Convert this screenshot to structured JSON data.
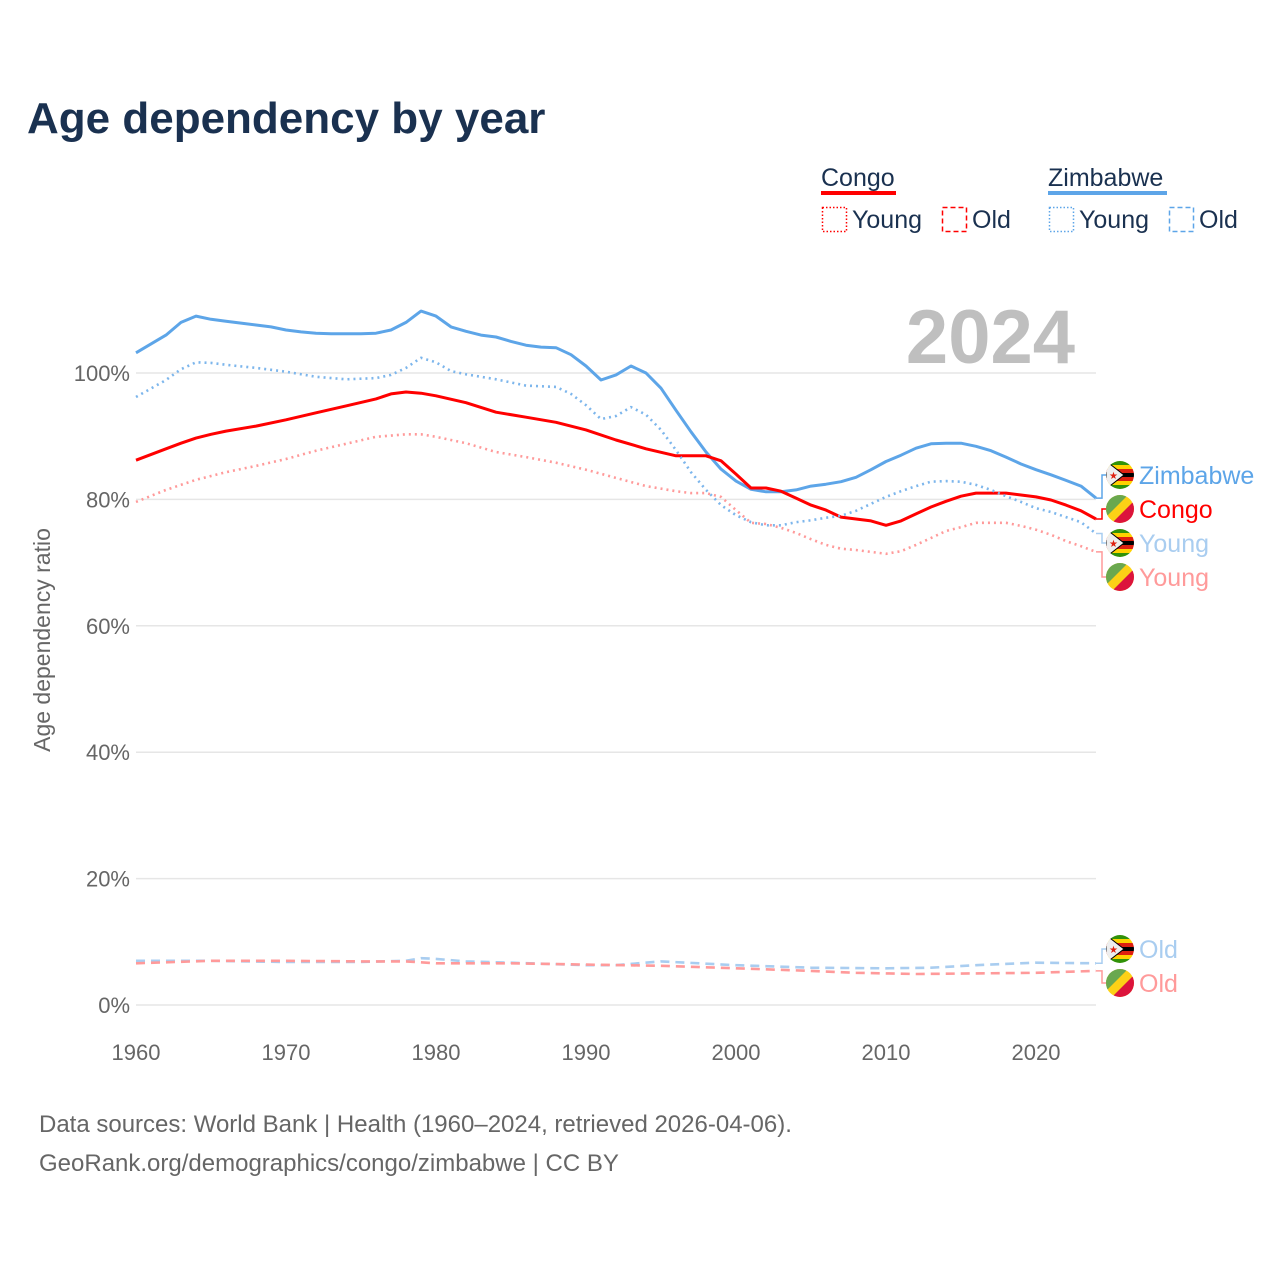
{
  "chart_data": {
    "type": "line",
    "title": "Age dependency by year",
    "xlabel": "",
    "ylabel": "Age dependency ratio",
    "xlim": [
      1960,
      2024
    ],
    "ylim": [
      0,
      110
    ],
    "x_ticks": [
      "1960",
      "1970",
      "1980",
      "1990",
      "2000",
      "2010",
      "2020"
    ],
    "x_tick_values": [
      1960,
      1970,
      1980,
      1990,
      2000,
      2010,
      2020
    ],
    "y_ticks": [
      "0%",
      "20%",
      "40%",
      "60%",
      "80%",
      "100%"
    ],
    "y_tick_values": [
      0,
      20,
      40,
      60,
      80,
      100
    ],
    "grid": true,
    "year_watermark": "2024",
    "legend": {
      "placement": "top-right",
      "groups": [
        {
          "country": "Congo",
          "color": "#FF0000",
          "items": [
            "Young",
            "Old"
          ]
        },
        {
          "country": "Zimbabwe",
          "color": "#5DA5E8",
          "items": [
            "Young",
            "Old"
          ]
        }
      ]
    },
    "series": [
      {
        "name": "Zimbabwe",
        "country": "Zimbabwe",
        "kind": "total",
        "color": "#5DA5E8",
        "style": "solid",
        "end_label": "Zimbabwe",
        "label_color": "#5DA5E8",
        "x": [
          1960,
          1961,
          1962,
          1963,
          1964,
          1965,
          1966,
          1967,
          1968,
          1969,
          1970,
          1971,
          1972,
          1973,
          1974,
          1975,
          1976,
          1977,
          1978,
          1979,
          1980,
          1981,
          1982,
          1983,
          1984,
          1985,
          1986,
          1987,
          1988,
          1989,
          1990,
          1991,
          1992,
          1993,
          1994,
          1995,
          1996,
          1997,
          1998,
          1999,
          2000,
          2001,
          2002,
          2003,
          2004,
          2005,
          2006,
          2007,
          2008,
          2009,
          2010,
          2011,
          2012,
          2013,
          2014,
          2015,
          2016,
          2017,
          2018,
          2019,
          2020,
          2021,
          2022,
          2023,
          2024
        ],
        "y": [
          103.2,
          104.6,
          106,
          108,
          109,
          108.5,
          108.2,
          107.9,
          107.6,
          107.3,
          106.8,
          106.5,
          106.3,
          106.2,
          106.2,
          106.2,
          106.3,
          106.8,
          108,
          109.8,
          109,
          107.3,
          106.6,
          106,
          105.7,
          105,
          104.4,
          104.1,
          104,
          102.9,
          101.1,
          98.9,
          99.7,
          101.1,
          100,
          97.6,
          94.1,
          90.7,
          87.5,
          84.8,
          82.9,
          81.6,
          81.2,
          81.2,
          81.5,
          82.1,
          82.4,
          82.8,
          83.5,
          84.7,
          86,
          87,
          88.1,
          88.8,
          88.9,
          88.9,
          88.4,
          87.7,
          86.7,
          85.6,
          84.7,
          83.9,
          83,
          82.1,
          80.2
        ]
      },
      {
        "name": "Congo",
        "country": "Congo",
        "kind": "total",
        "color": "#FF0000",
        "style": "solid",
        "end_label": "Congo",
        "label_color": "#FF0000",
        "x": [
          1960,
          1962,
          1963,
          1964,
          1965,
          1966,
          1968,
          1970,
          1972,
          1974,
          1976,
          1977,
          1978,
          1979,
          1980,
          1982,
          1984,
          1986,
          1988,
          1990,
          1992,
          1994,
          1996,
          1997,
          1998,
          1999,
          2000,
          2001,
          2002,
          2003,
          2004,
          2005,
          2006,
          2007,
          2008,
          2009,
          2010,
          2011,
          2012,
          2013,
          2014,
          2015,
          2016,
          2017,
          2018,
          2019,
          2020,
          2021,
          2022,
          2023,
          2024
        ],
        "y": [
          86.2,
          88,
          88.9,
          89.7,
          90.3,
          90.8,
          91.6,
          92.6,
          93.7,
          94.8,
          95.9,
          96.7,
          97,
          96.8,
          96.4,
          95.3,
          93.8,
          93,
          92.2,
          91,
          89.4,
          88,
          86.9,
          86.9,
          86.9,
          86.1,
          84,
          81.8,
          81.8,
          81.3,
          80.2,
          79.1,
          78.3,
          77.2,
          76.9,
          76.6,
          75.9,
          76.6,
          77.7,
          78.8,
          79.7,
          80.5,
          81,
          81,
          81,
          80.7,
          80.4,
          79.9,
          79.1,
          78.2,
          76.9
        ]
      },
      {
        "name": "Zimbabwe Young",
        "country": "Zimbabwe",
        "kind": "young",
        "color": "#7DB6EC",
        "style": "dotted",
        "end_label": "Young",
        "label_color": "#A9CDF0",
        "x": [
          1960,
          1962,
          1963,
          1964,
          1965,
          1966,
          1968,
          1970,
          1972,
          1974,
          1976,
          1977,
          1978,
          1979,
          1980,
          1981,
          1982,
          1984,
          1986,
          1988,
          1989,
          1990,
          1991,
          1992,
          1993,
          1994,
          1995,
          1996,
          1997,
          1998,
          1999,
          2000,
          2001,
          2002,
          2003,
          2004,
          2005,
          2006,
          2007,
          2008,
          2009,
          2010,
          2011,
          2012,
          2013,
          2014,
          2015,
          2016,
          2017,
          2018,
          2019,
          2020,
          2021,
          2022,
          2023,
          2024
        ],
        "y": [
          96.2,
          98.9,
          100.6,
          101.7,
          101.6,
          101.3,
          100.8,
          100.2,
          99.4,
          99,
          99.2,
          99.7,
          100.8,
          102.4,
          101.7,
          100.3,
          99.8,
          99,
          98,
          97.8,
          96.7,
          94.9,
          92.7,
          93.2,
          94.6,
          93.4,
          91,
          87.8,
          84.3,
          81.5,
          79.1,
          77.5,
          76.4,
          75.9,
          75.9,
          76.4,
          76.7,
          77.1,
          77.4,
          78.2,
          79.3,
          80.4,
          81.3,
          82.1,
          82.8,
          82.9,
          82.8,
          82.3,
          81.5,
          80.5,
          79.6,
          78.6,
          78,
          77.2,
          76.4,
          74.6
        ]
      },
      {
        "name": "Congo Young",
        "country": "Congo",
        "kind": "young",
        "color": "#FF9A9A",
        "style": "dotted",
        "end_label": "Young",
        "label_color": "#FF9A9A",
        "x": [
          1960,
          1962,
          1964,
          1966,
          1968,
          1970,
          1972,
          1974,
          1976,
          1978,
          1979,
          1980,
          1982,
          1984,
          1986,
          1988,
          1990,
          1992,
          1994,
          1996,
          1997,
          1998,
          1999,
          2000,
          2001,
          2002,
          2003,
          2004,
          2005,
          2006,
          2007,
          2008,
          2009,
          2010,
          2011,
          2012,
          2013,
          2014,
          2015,
          2016,
          2017,
          2018,
          2019,
          2020,
          2021,
          2022,
          2023,
          2024
        ],
        "y": [
          79.6,
          81.5,
          83.1,
          84.3,
          85.3,
          86.4,
          87.7,
          88.8,
          89.9,
          90.3,
          90.3,
          89.9,
          88.9,
          87.5,
          86.7,
          85.8,
          84.7,
          83.4,
          82.1,
          81.3,
          81,
          81,
          80.4,
          78.3,
          76.3,
          76.1,
          75.5,
          74.7,
          73.7,
          72.8,
          72.2,
          72,
          71.7,
          71.4,
          71.8,
          72.8,
          73.9,
          75,
          75.6,
          76.3,
          76.3,
          76.3,
          75.8,
          75.2,
          74.4,
          73.4,
          72.6,
          71.7
        ]
      },
      {
        "name": "Zimbabwe Old",
        "country": "Zimbabwe",
        "kind": "old",
        "color": "#A9CDF0",
        "style": "dashed",
        "end_label": "Old",
        "label_color": "#A9CDF0",
        "x": [
          1960,
          1965,
          1970,
          1975,
          1978,
          1979,
          1980,
          1982,
          1985,
          1990,
          1992,
          1995,
          2000,
          2005,
          2010,
          2013,
          2016,
          2020,
          2024
        ],
        "y": [
          7.0,
          7.0,
          6.8,
          6.8,
          7.0,
          7.4,
          7.3,
          6.9,
          6.7,
          6.3,
          6.3,
          6.9,
          6.3,
          5.9,
          5.8,
          5.9,
          6.3,
          6.7,
          6.6
        ]
      },
      {
        "name": "Congo Old",
        "country": "Congo",
        "kind": "old",
        "color": "#FF9A9A",
        "style": "dashed",
        "end_label": "Old",
        "label_color": "#FF9A9A",
        "x": [
          1960,
          1965,
          1970,
          1975,
          1978,
          1980,
          1985,
          1990,
          1995,
          2000,
          2005,
          2008,
          2012,
          2016,
          2020,
          2024
        ],
        "y": [
          6.6,
          7.0,
          7.0,
          6.9,
          6.9,
          6.6,
          6.6,
          6.4,
          6.2,
          5.8,
          5.4,
          5.1,
          4.9,
          5.0,
          5.1,
          5.4
        ]
      }
    ]
  },
  "footer": {
    "line1": "Data sources: World Bank | Health (1960–2024, retrieved 2026-04-06).",
    "line2": "GeoRank.org/demographics/congo/zimbabwe | CC BY"
  }
}
